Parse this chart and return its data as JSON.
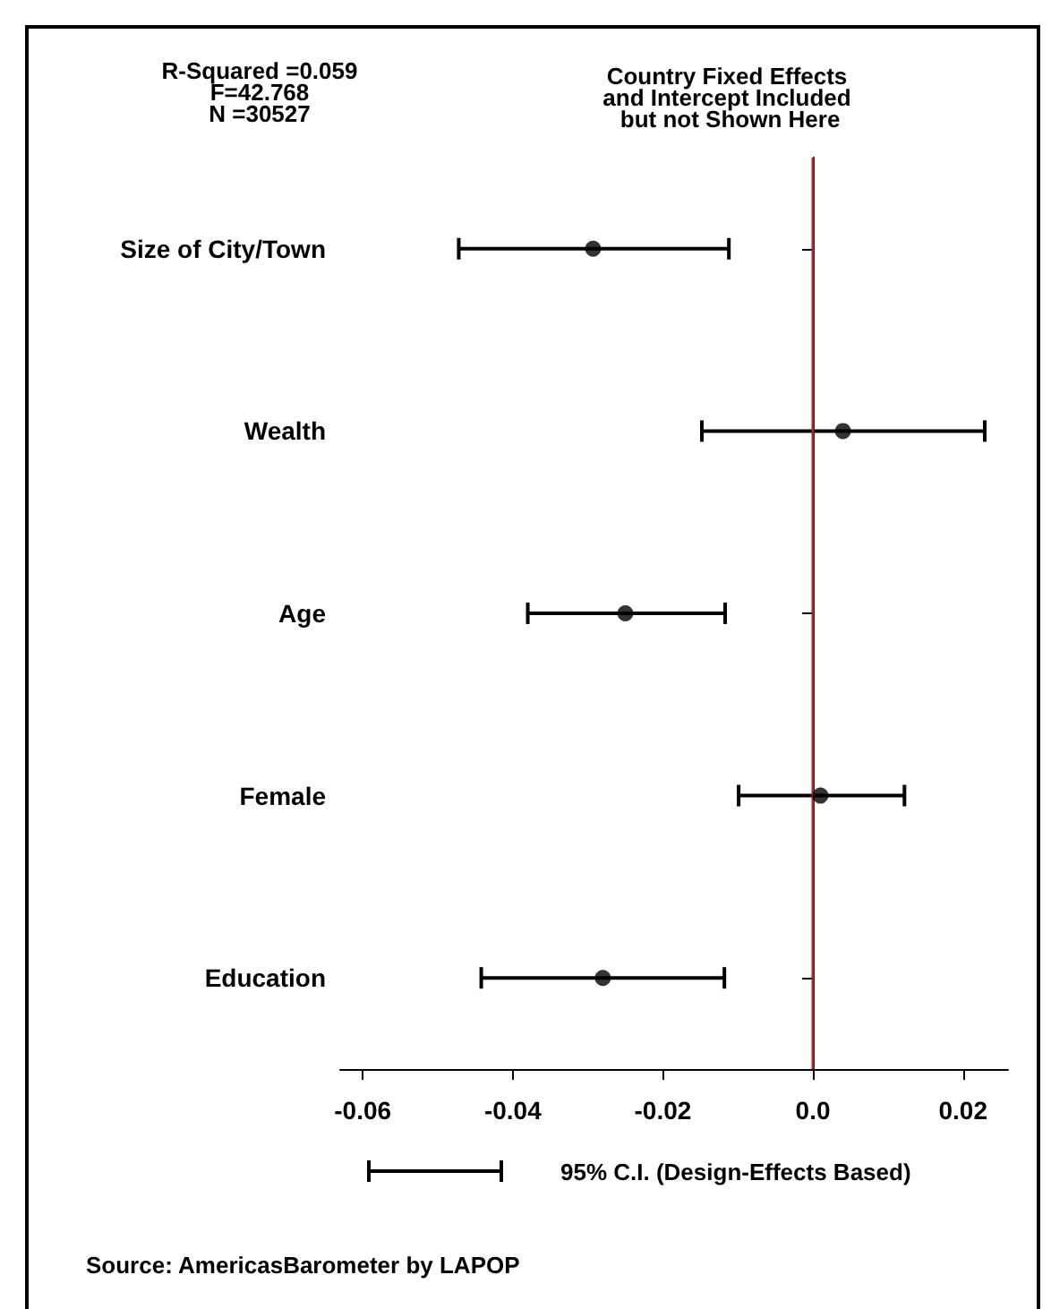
{
  "chart_data": {
    "type": "scatter",
    "orientation": "horizontal",
    "categories": [
      "Size of City/Town",
      "Wealth",
      "Age",
      "Female",
      "Education"
    ],
    "values": [
      -0.0293,
      0.004,
      -0.025,
      0.001,
      -0.028
    ],
    "errors": [
      [
        -0.0472,
        -0.0112
      ],
      [
        -0.0148,
        0.0229
      ],
      [
        -0.038,
        -0.0117
      ],
      [
        -0.0099,
        0.0122
      ],
      [
        -0.0442,
        -0.0118
      ]
    ],
    "color": "#000000",
    "marker": "circle",
    "xlim": [
      -0.063,
      0.026
    ],
    "xticks": [
      -0.06,
      -0.04,
      -0.02,
      {
        "value": 0,
        "label": "0.0"
      },
      0.02
    ],
    "ref_lines": [
      {
        "axis": "x",
        "value": 0,
        "color": "#a52a2a",
        "line_style": "solid"
      }
    ],
    "grid": false,
    "annotations": [
      "R-Squared =0.059",
      "F=42.768",
      "N =30527",
      "Country Fixed Effects",
      "and Intercept Included",
      " but not Shown Here",
      "95% C.I. (Design-Effects Based)",
      "Source: AmericasBarometer by LAPOP"
    ]
  }
}
